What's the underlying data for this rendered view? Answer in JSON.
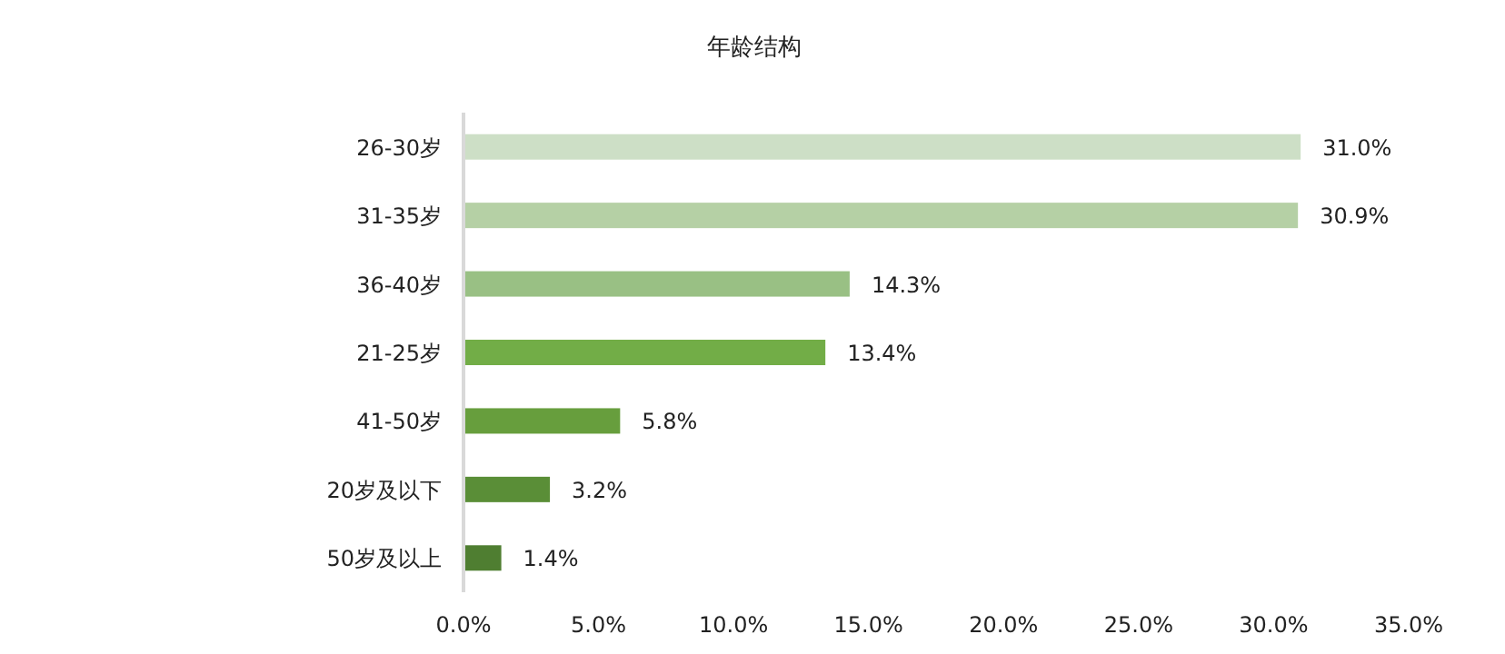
{
  "chart_data": {
    "type": "bar",
    "orientation": "horizontal",
    "title": "年龄结构",
    "categories": [
      "26-30岁",
      "31-35岁",
      "36-40岁",
      "21-25岁",
      "41-50岁",
      "20岁及以下",
      "50岁及以上"
    ],
    "values": [
      31.0,
      30.9,
      14.3,
      13.4,
      5.8,
      3.2,
      1.4
    ],
    "colors": [
      "#cddfc6",
      "#b5d0a5",
      "#99c084",
      "#72ad47",
      "#679e3d",
      "#5a8e37",
      "#4f7e31"
    ],
    "value_labels": [
      "31.0%",
      "30.9%",
      "14.3%",
      "13.4%",
      "5.8%",
      "3.2%",
      "1.4%"
    ],
    "xlim": [
      0,
      35
    ],
    "xticks": [
      {
        "value": 0,
        "label": "0.0%"
      },
      {
        "value": 5,
        "label": "5.0%"
      },
      {
        "value": 10,
        "label": "10.0%"
      },
      {
        "value": 15,
        "label": "15.0%"
      },
      {
        "value": 20,
        "label": "20.0%"
      },
      {
        "value": 25,
        "label": "25.0%"
      },
      {
        "value": 30,
        "label": "30.0%"
      },
      {
        "value": 35,
        "label": "35.0%"
      }
    ],
    "grid": false
  }
}
